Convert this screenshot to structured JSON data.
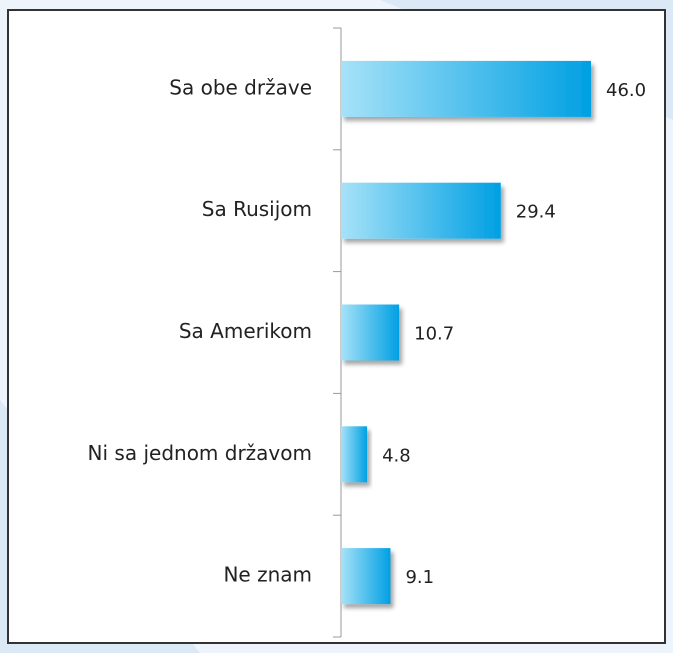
{
  "chart_data": {
    "type": "bar",
    "orientation": "horizontal",
    "categories": [
      "Sa obe države",
      "Sa Rusijom",
      "Sa Amerikom",
      "Ni sa jednom državom",
      "Ne znam"
    ],
    "values": [
      46.0,
      29.4,
      10.7,
      4.8,
      9.1
    ],
    "value_labels": [
      "46.0",
      "29.4",
      "10.7",
      "4.8",
      "9.1"
    ],
    "color": "#00a0e3"
  }
}
